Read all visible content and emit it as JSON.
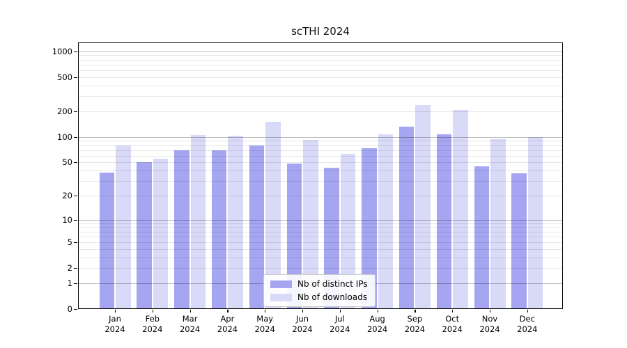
{
  "chart_data": {
    "type": "bar",
    "title": "scTHI 2024",
    "categories": [
      "Jan",
      "Feb",
      "Mar",
      "Apr",
      "May",
      "Jun",
      "Jul",
      "Aug",
      "Sep",
      "Oct",
      "Nov",
      "Dec"
    ],
    "year_label": "2024",
    "series": [
      {
        "name": "Nb of distinct IPs",
        "color": "#a5a5f2",
        "values": [
          38,
          50,
          70,
          69,
          80,
          48,
          43,
          73,
          132,
          107,
          45,
          37
        ]
      },
      {
        "name": "Nb of downloads",
        "color": "#d9d9f8",
        "values": [
          80,
          55,
          105,
          103,
          150,
          92,
          63,
          108,
          238,
          207,
          94,
          100
        ]
      }
    ],
    "y_axis": {
      "scale": "log1p",
      "tick_labels": [
        "1000",
        "500",
        "200",
        "100",
        "50",
        "20",
        "10",
        "5",
        "2",
        "1",
        "0"
      ],
      "tick_values": [
        1000,
        500,
        200,
        100,
        50,
        20,
        10,
        5,
        2,
        1,
        0
      ],
      "major_gridline_values": [
        1,
        10,
        100,
        1000
      ],
      "ylim": [
        0,
        1260
      ]
    },
    "legend_position": "lower center",
    "grid": "on"
  }
}
